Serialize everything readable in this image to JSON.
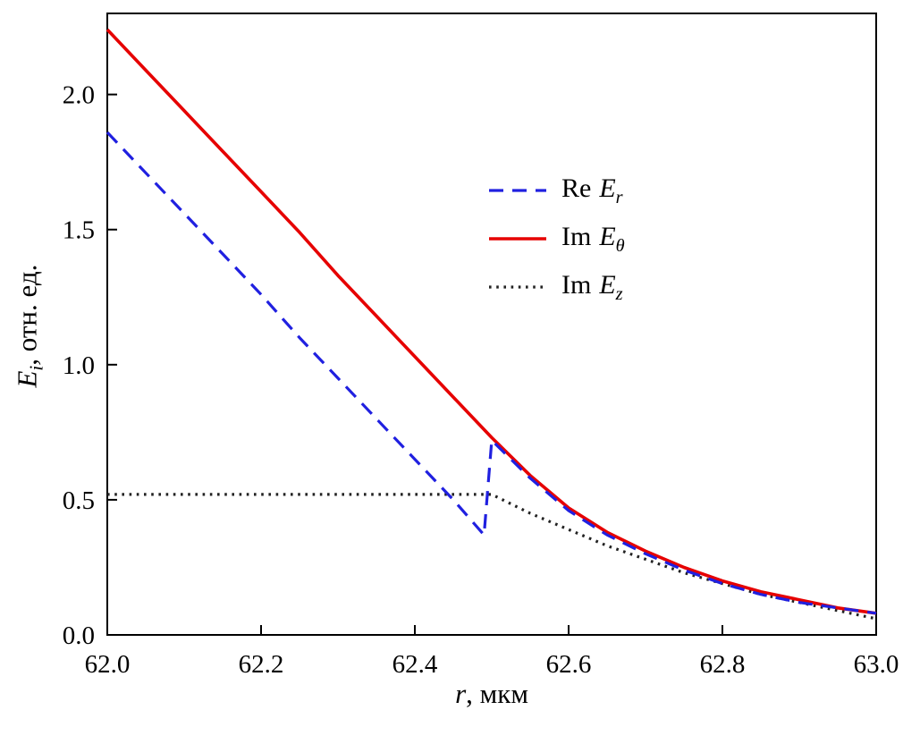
{
  "figure": {
    "background": "#ffffff",
    "frame_color": "#000000"
  },
  "chart_data": {
    "type": "line",
    "title": "",
    "xlabel": {
      "var": "r",
      "rest": ", мкм"
    },
    "ylabel": {
      "var": "E",
      "sub": "i",
      "rest": ", отн. ед."
    },
    "xlim": [
      62.0,
      63.0
    ],
    "ylim": [
      0.0,
      2.3
    ],
    "x_ticks": [
      62.0,
      62.2,
      62.4,
      62.6,
      62.8,
      63.0
    ],
    "x_tick_labels": [
      "62.0",
      "62.2",
      "62.4",
      "62.6",
      "62.8",
      "63.0"
    ],
    "y_ticks": [
      0.0,
      0.5,
      1.0,
      1.5,
      2.0
    ],
    "y_tick_labels": [
      "0.0",
      "0.5",
      "1.0",
      "1.5",
      "2.0"
    ],
    "grid": false,
    "frame": "box",
    "legend": {
      "position": "inside-upper-right"
    },
    "series": [
      {
        "name": "Re Er",
        "legend": {
          "prefix": "Re",
          "var": "E",
          "sub": "r"
        },
        "color": "#2020e0",
        "style": "dashed",
        "width": 3.2,
        "points": [
          [
            62.0,
            1.86
          ],
          [
            62.05,
            1.71
          ],
          [
            62.1,
            1.56
          ],
          [
            62.15,
            1.41
          ],
          [
            62.2,
            1.26
          ],
          [
            62.25,
            1.1
          ],
          [
            62.3,
            0.95
          ],
          [
            62.35,
            0.8
          ],
          [
            62.4,
            0.65
          ],
          [
            62.45,
            0.5
          ],
          [
            62.49,
            0.37
          ],
          [
            62.5,
            0.72
          ],
          [
            62.55,
            0.58
          ],
          [
            62.6,
            0.46
          ],
          [
            62.65,
            0.37
          ],
          [
            62.7,
            0.3
          ],
          [
            62.75,
            0.24
          ],
          [
            62.8,
            0.19
          ],
          [
            62.85,
            0.15
          ],
          [
            62.9,
            0.12
          ],
          [
            62.95,
            0.1
          ],
          [
            63.0,
            0.08
          ]
        ]
      },
      {
        "name": "Im Etheta",
        "legend": {
          "prefix": "Im",
          "var": "E",
          "sub": "θ"
        },
        "color": "#e60000",
        "style": "solid",
        "width": 3.6,
        "points": [
          [
            62.0,
            2.24
          ],
          [
            62.05,
            2.09
          ],
          [
            62.1,
            1.94
          ],
          [
            62.15,
            1.79
          ],
          [
            62.2,
            1.64
          ],
          [
            62.25,
            1.49
          ],
          [
            62.3,
            1.33
          ],
          [
            62.35,
            1.18
          ],
          [
            62.4,
            1.03
          ],
          [
            62.45,
            0.88
          ],
          [
            62.5,
            0.73
          ],
          [
            62.55,
            0.59
          ],
          [
            62.6,
            0.47
          ],
          [
            62.65,
            0.38
          ],
          [
            62.7,
            0.31
          ],
          [
            62.75,
            0.25
          ],
          [
            62.8,
            0.2
          ],
          [
            62.85,
            0.16
          ],
          [
            62.9,
            0.13
          ],
          [
            62.95,
            0.1
          ],
          [
            63.0,
            0.08
          ]
        ]
      },
      {
        "name": "Im Ez",
        "legend": {
          "prefix": "Im",
          "var": "E",
          "sub": "z"
        },
        "color": "#222222",
        "style": "dotted",
        "width": 3.2,
        "points": [
          [
            62.0,
            0.52
          ],
          [
            62.1,
            0.52
          ],
          [
            62.2,
            0.52
          ],
          [
            62.3,
            0.52
          ],
          [
            62.4,
            0.52
          ],
          [
            62.5,
            0.52
          ],
          [
            62.55,
            0.45
          ],
          [
            62.6,
            0.39
          ],
          [
            62.65,
            0.33
          ],
          [
            62.7,
            0.28
          ],
          [
            62.75,
            0.23
          ],
          [
            62.8,
            0.19
          ],
          [
            62.85,
            0.15
          ],
          [
            62.9,
            0.12
          ],
          [
            62.95,
            0.09
          ],
          [
            63.0,
            0.06
          ]
        ]
      }
    ]
  }
}
